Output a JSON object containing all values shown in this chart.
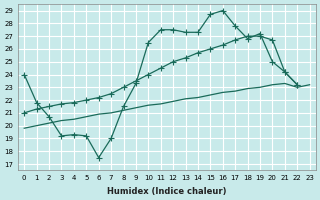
{
  "xlabel": "Humidex (Indice chaleur)",
  "bg_color": "#c8eaea",
  "grid_color": "#ffffff",
  "line_color": "#1a6b5a",
  "xlim": [
    -0.5,
    23.5
  ],
  "ylim": [
    16.5,
    29.5
  ],
  "xticks": [
    0,
    1,
    2,
    3,
    4,
    5,
    6,
    7,
    8,
    9,
    10,
    11,
    12,
    13,
    14,
    15,
    16,
    17,
    18,
    19,
    20,
    21,
    22,
    23
  ],
  "yticks": [
    17,
    18,
    19,
    20,
    21,
    22,
    23,
    24,
    25,
    26,
    27,
    28,
    29
  ],
  "line1_x": [
    0,
    1,
    2,
    3,
    4,
    5,
    6,
    7,
    8,
    9,
    10,
    11,
    12,
    13,
    14,
    15,
    16,
    17,
    18,
    19,
    20,
    21,
    22
  ],
  "line1_y": [
    24.0,
    21.8,
    20.7,
    19.2,
    19.3,
    19.2,
    17.5,
    19.0,
    21.5,
    23.3,
    26.5,
    27.5,
    27.5,
    27.3,
    27.3,
    28.7,
    29.0,
    27.8,
    26.8,
    27.2,
    25.0,
    24.2,
    23.2
  ],
  "line2_x": [
    0,
    1,
    2,
    3,
    4,
    5,
    6,
    7,
    8,
    9,
    10,
    11,
    12,
    13,
    14,
    15,
    16,
    17,
    18,
    19,
    20,
    21,
    22
  ],
  "line2_y": [
    21.0,
    21.3,
    21.5,
    21.7,
    21.8,
    22.0,
    22.2,
    22.5,
    23.0,
    23.5,
    24.0,
    24.5,
    25.0,
    25.3,
    25.7,
    26.0,
    26.3,
    26.7,
    27.0,
    27.0,
    26.7,
    24.2,
    23.2
  ],
  "line3_x": [
    0,
    1,
    2,
    3,
    4,
    5,
    6,
    7,
    8,
    9,
    10,
    11,
    12,
    13,
    14,
    15,
    16,
    17,
    18,
    19,
    20,
    21,
    22,
    23
  ],
  "line3_y": [
    19.8,
    20.0,
    20.2,
    20.4,
    20.5,
    20.7,
    20.9,
    21.0,
    21.2,
    21.4,
    21.6,
    21.7,
    21.9,
    22.1,
    22.2,
    22.4,
    22.6,
    22.7,
    22.9,
    23.0,
    23.2,
    23.3,
    23.0,
    23.2
  ]
}
